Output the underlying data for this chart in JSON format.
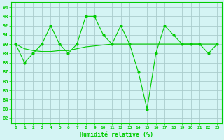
{
  "x": [
    0,
    1,
    2,
    3,
    4,
    5,
    6,
    7,
    8,
    9,
    10,
    11,
    12,
    13,
    14,
    15,
    16,
    17,
    18,
    19,
    20,
    21,
    22,
    23
  ],
  "y_main": [
    90,
    88,
    89,
    90,
    92,
    90,
    89,
    90,
    93,
    93,
    91,
    90,
    92,
    90,
    87,
    83,
    89,
    92,
    91,
    90,
    90,
    90,
    89,
    90
  ],
  "y_smooth": [
    90.0,
    89.5,
    89.3,
    89.2,
    89.2,
    89.3,
    89.3,
    89.5,
    89.7,
    89.8,
    89.9,
    90.0,
    90.0,
    90.0,
    90.0,
    90.0,
    90.0,
    90.0,
    90.0,
    90.0,
    90.0,
    90.0,
    90.0,
    90.0
  ],
  "line_color": "#00cc00",
  "bg_color": "#d4f4f4",
  "grid_color": "#aacccc",
  "ylabel_ticks": [
    82,
    83,
    84,
    85,
    86,
    87,
    88,
    89,
    90,
    91,
    92,
    93,
    94
  ],
  "ylim": [
    81.5,
    94.5
  ],
  "xlim": [
    -0.5,
    23.5
  ],
  "xlabel": "Humidité relative (%)",
  "figsize": [
    3.2,
    2.0
  ],
  "dpi": 100
}
